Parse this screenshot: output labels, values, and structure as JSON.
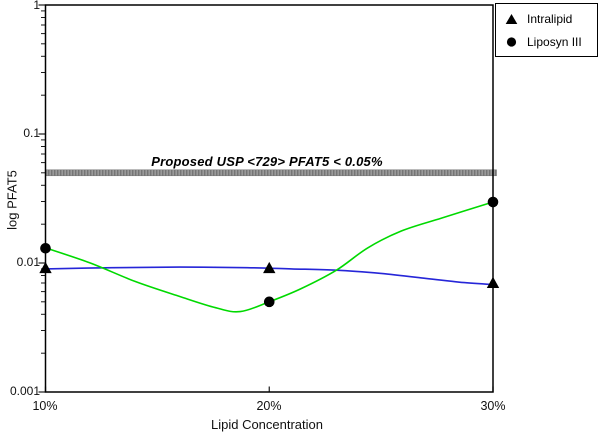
{
  "chart_data": {
    "type": "line",
    "title": "",
    "xlabel": "Lipid Concentration",
    "ylabel": "log PFAT5",
    "x_scale": "linear-percent",
    "y_scale": "log",
    "ylim": [
      0.001,
      1
    ],
    "xlim_percent": [
      10,
      30
    ],
    "grid": false,
    "x_ticks": [
      "10%",
      "20%",
      "30%"
    ],
    "x_tick_values": [
      10,
      20,
      30
    ],
    "y_ticks": [
      "1",
      "0.1",
      "0.01",
      "0.001"
    ],
    "y_tick_values": [
      1,
      0.1,
      0.01,
      0.001
    ],
    "limit_line": {
      "label": "Proposed USP <729> PFAT5 < 0.05%",
      "value": 0.05,
      "color": "#8f8f8f"
    },
    "legend_position": "top-right-outside",
    "series": [
      {
        "name": "Intralipid",
        "marker": "triangle",
        "color": "#2626d8",
        "points": [
          [
            10,
            0.009
          ],
          [
            20,
            0.009
          ],
          [
            30,
            0.0069
          ]
        ],
        "curve": [
          [
            10,
            0.009
          ],
          [
            13,
            0.0092
          ],
          [
            16,
            0.0093
          ],
          [
            19,
            0.0092
          ],
          [
            21,
            0.009
          ],
          [
            23,
            0.0088
          ],
          [
            25,
            0.0083
          ],
          [
            27,
            0.0076
          ],
          [
            28.5,
            0.0071
          ],
          [
            30,
            0.0068
          ]
        ]
      },
      {
        "name": "Liposyn III",
        "marker": "circle",
        "color": "#00d900",
        "points": [
          [
            10,
            0.013
          ],
          [
            20,
            0.005
          ],
          [
            30,
            0.0297
          ]
        ],
        "curve": [
          [
            10,
            0.0131
          ],
          [
            12,
            0.01
          ],
          [
            14,
            0.0072
          ],
          [
            16,
            0.0055
          ],
          [
            17.6,
            0.0045
          ],
          [
            18.7,
            0.0042
          ],
          [
            20,
            0.005
          ],
          [
            21.4,
            0.0063
          ],
          [
            23,
            0.0088
          ],
          [
            24.4,
            0.0131
          ],
          [
            25.9,
            0.0177
          ],
          [
            27.7,
            0.0223
          ],
          [
            30,
            0.0297
          ]
        ]
      }
    ],
    "axis_color": "#000000"
  }
}
